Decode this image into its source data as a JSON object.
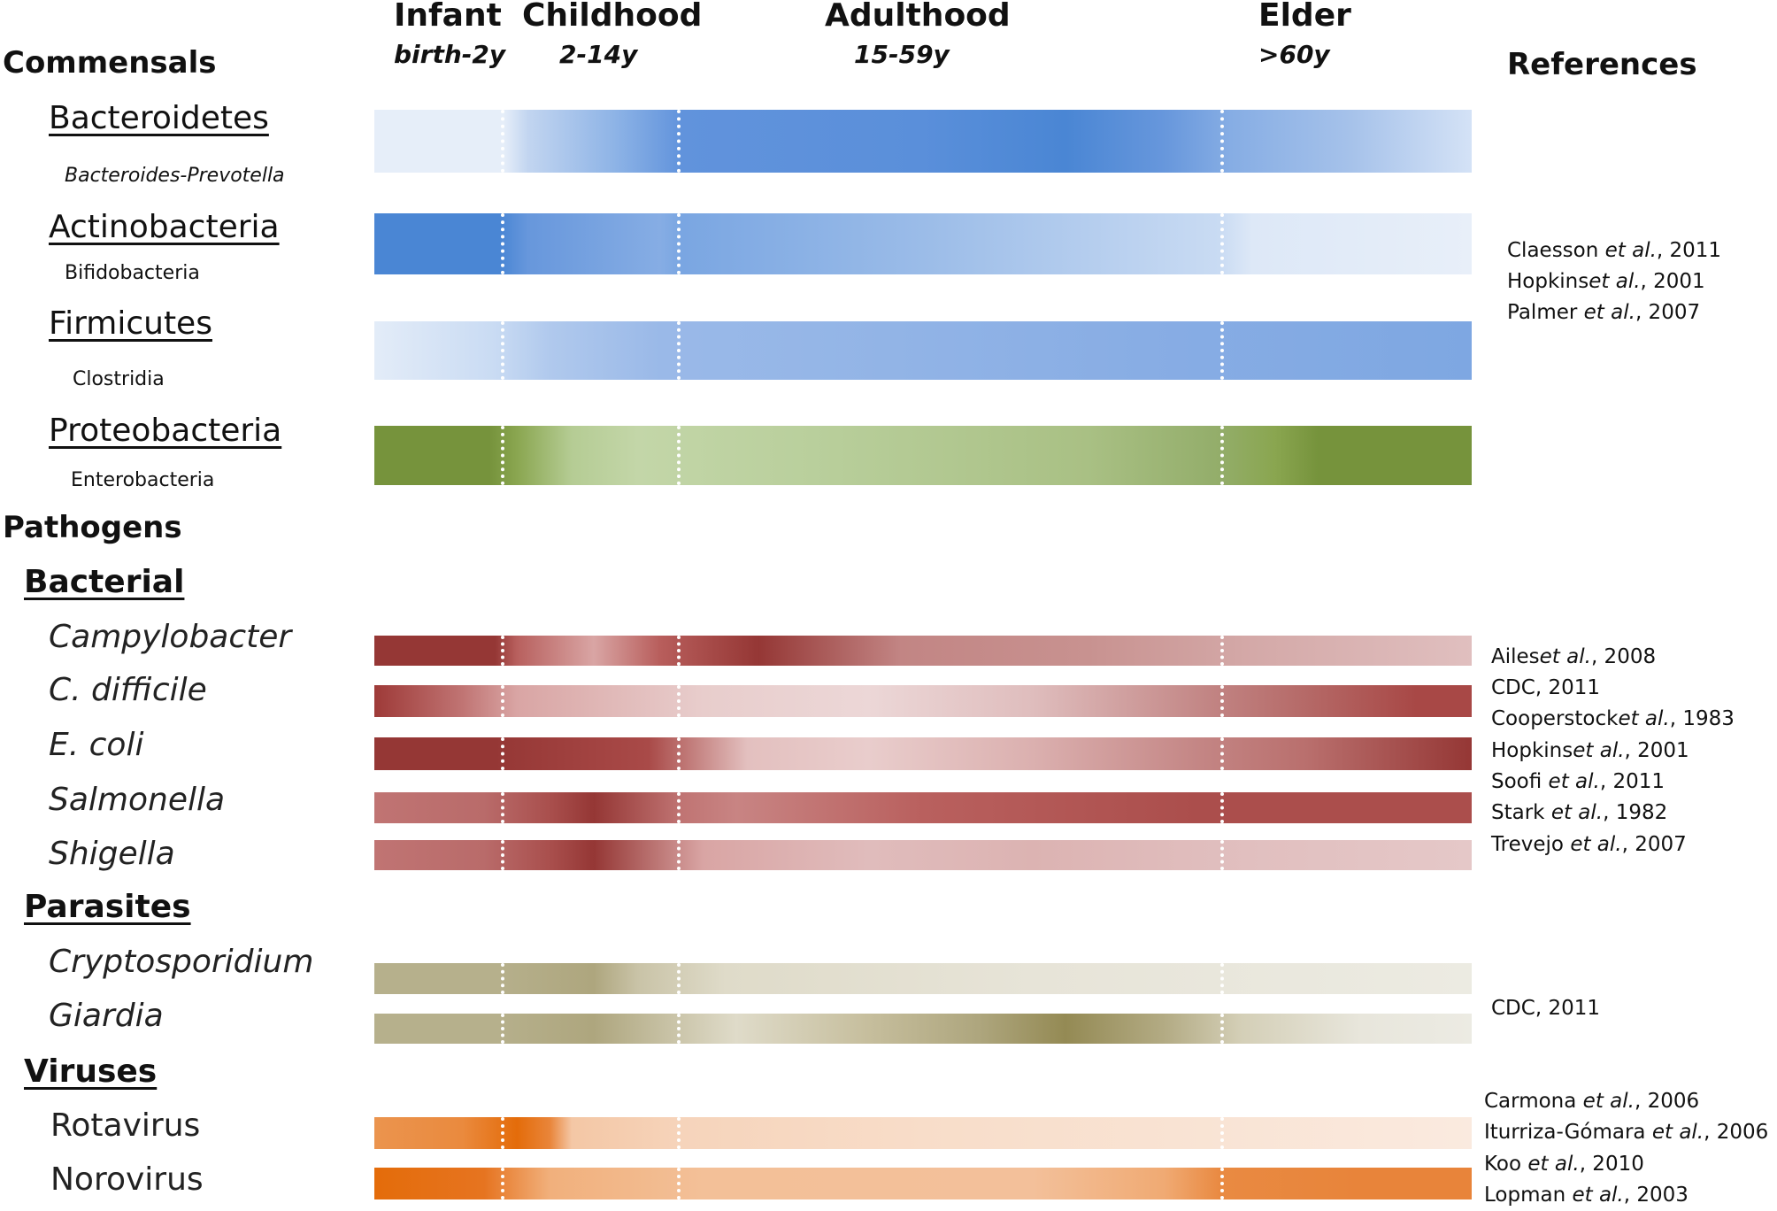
{
  "header": {
    "stages": [
      {
        "name": "Infant",
        "range": "birth-2y"
      },
      {
        "name": "Childhood",
        "range": "2-14y"
      },
      {
        "name": "Adulthood",
        "range": "15-59y"
      },
      {
        "name": "Elder",
        "range": ">60y"
      }
    ],
    "references_title": "References"
  },
  "sections": {
    "commensals": "Commensals",
    "pathogens": "Pathogens"
  },
  "commensals": [
    {
      "phylum": "Bacteroidetes",
      "sub": "Bacteroides-Prevotella",
      "color": "#4a86d4"
    },
    {
      "phylum": "Actinobacteria",
      "sub": "Bifidobacteria",
      "color": "#4a86d4"
    },
    {
      "phylum": "Firmicutes",
      "sub": "Clostridia",
      "color": "#4a86d4"
    },
    {
      "phylum": "Proteobacteria",
      "sub": "Enterobacteria",
      "color": "#76933c"
    }
  ],
  "pathogen_groups": {
    "bacterial": {
      "label": "Bacterial",
      "items": [
        "Campylobacter",
        "C. difficile",
        "E. coli",
        "Salmonella",
        "Shigella"
      ],
      "color": "#953735"
    },
    "parasites": {
      "label": "Parasites",
      "items": [
        "Cryptosporidium",
        "Giardia"
      ],
      "color": "#948a54"
    },
    "viruses": {
      "label": "Viruses",
      "items": [
        "Rotavirus",
        "Norovirus"
      ],
      "color": "#e46c0a"
    }
  },
  "references": {
    "commensals": [
      {
        "author": "Claesson ",
        "etal": "et al.",
        "year": ", 2011"
      },
      {
        "author": "Hopkins",
        "etal": "et al.",
        "year": ", 2001"
      },
      {
        "author": "Palmer ",
        "etal": "et al.",
        "year": ", 2007"
      }
    ],
    "bacterial": [
      {
        "author": "Ailes",
        "etal": "et al.",
        "year": ", 2008"
      },
      {
        "author": "CDC, 2011",
        "etal": "",
        "year": ""
      },
      {
        "author": "Cooperstock",
        "etal": "et al.",
        "year": ", 1983"
      },
      {
        "author": "Hopkins",
        "etal": "et al.",
        "year": ", 2001"
      },
      {
        "author": "Soofi ",
        "etal": "et al.",
        "year": ", 2011"
      },
      {
        "author": "Stark ",
        "etal": "et al.",
        "year": ", 1982"
      },
      {
        "author": "Trevejo ",
        "etal": "et al.",
        "year": ", 2007"
      }
    ],
    "parasites": [
      {
        "author": "CDC, 2011",
        "etal": "",
        "year": ""
      }
    ],
    "viruses": [
      {
        "author": "Carmona ",
        "etal": "et al.",
        "year": ", 2006"
      },
      {
        "author": "Iturriza-Gómara ",
        "etal": "et al.",
        "year": ", 2006"
      },
      {
        "author": "Koo ",
        "etal": "et al.",
        "year": ", 2010"
      },
      {
        "author": "Lopman ",
        "etal": "et al.",
        "year": ", 2003"
      }
    ]
  }
}
